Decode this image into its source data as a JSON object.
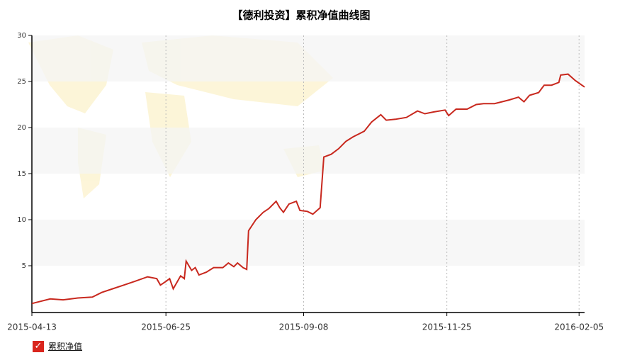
{
  "chart_data": {
    "type": "line",
    "title": "【德利投资】累积净值曲线图",
    "x": [
      "2015-04-13",
      "2015-04-23",
      "2015-04-30",
      "2015-05-08",
      "2015-05-16",
      "2015-05-21",
      "2015-05-27",
      "2015-06-02",
      "2015-06-08",
      "2015-06-15",
      "2015-06-20",
      "2015-06-22",
      "2015-06-25",
      "2015-06-27",
      "2015-06-29",
      "2015-07-03",
      "2015-07-05",
      "2015-07-06",
      "2015-07-09",
      "2015-07-11",
      "2015-07-13",
      "2015-07-17",
      "2015-07-21",
      "2015-07-26",
      "2015-07-29",
      "2015-08-01",
      "2015-08-03",
      "2015-08-06",
      "2015-08-08",
      "2015-08-09",
      "2015-08-13",
      "2015-08-17",
      "2015-08-20",
      "2015-08-24",
      "2015-08-26",
      "2015-08-28",
      "2015-08-31",
      "2015-09-04",
      "2015-09-06",
      "2015-09-10",
      "2015-09-13",
      "2015-09-17",
      "2015-09-19",
      "2015-09-23",
      "2015-09-27",
      "2015-10-01",
      "2015-10-05",
      "2015-10-11",
      "2015-10-15",
      "2015-10-20",
      "2015-10-23",
      "2015-10-28",
      "2015-11-03",
      "2015-11-09",
      "2015-11-13",
      "2015-11-18",
      "2015-11-24",
      "2015-11-26",
      "2015-11-30",
      "2015-12-06",
      "2015-12-11",
      "2015-12-15",
      "2015-12-21",
      "2015-12-29",
      "2016-01-03",
      "2016-01-06",
      "2016-01-09",
      "2016-01-14",
      "2016-01-17",
      "2016-01-21",
      "2016-01-25",
      "2016-01-26",
      "2016-01-30",
      "2016-02-03",
      "2016-02-08"
    ],
    "series": [
      {
        "name": "累积净值",
        "color": "#c8281e",
        "values": [
          0.9,
          1.4,
          1.3,
          1.5,
          1.6,
          2.1,
          2.5,
          2.9,
          3.3,
          3.8,
          3.6,
          2.9,
          3.3,
          3.6,
          2.5,
          3.9,
          3.6,
          5.5,
          4.5,
          4.8,
          4.0,
          4.3,
          4.8,
          4.8,
          5.3,
          4.9,
          5.3,
          4.8,
          4.6,
          8.8,
          10.0,
          10.8,
          11.2,
          12.0,
          11.3,
          10.8,
          11.7,
          12.0,
          11.0,
          10.9,
          10.6,
          11.3,
          16.8,
          17.1,
          17.7,
          18.5,
          19.0,
          19.6,
          20.6,
          21.4,
          20.8,
          20.9,
          21.1,
          21.8,
          21.5,
          21.7,
          21.9,
          21.3,
          22.0,
          22.0,
          22.5,
          22.6,
          22.6,
          23.0,
          23.3,
          22.8,
          23.5,
          23.8,
          24.6,
          24.6,
          24.9,
          25.7,
          25.8,
          25.1,
          24.4
        ]
      }
    ],
    "xlim": [
      "2015-04-13",
      "2016-02-08"
    ],
    "xticks": [
      "2015-04-13",
      "2015-06-25",
      "2015-09-08",
      "2015-11-25",
      "2016-02-05"
    ],
    "ylim": [
      0,
      30
    ],
    "yticks": [
      5,
      10,
      15,
      20,
      25,
      30
    ],
    "grid": true
  }
}
